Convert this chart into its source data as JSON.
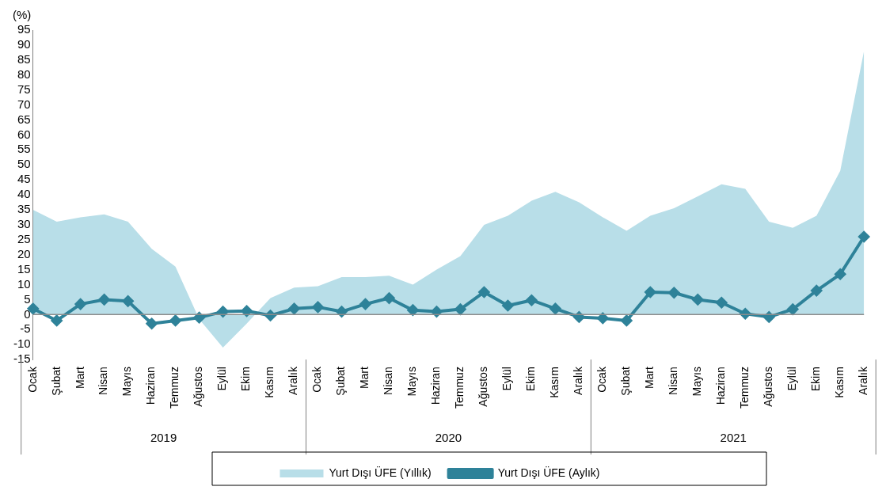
{
  "chart_data": {
    "type": "line",
    "ylabel": "(%)",
    "categories": [
      "Ocak",
      "Şubat",
      "Mart",
      "Nisan",
      "Mayıs",
      "Haziran",
      "Temmuz",
      "Ağustos",
      "Eylül",
      "Ekim",
      "Kasım",
      "Aralık",
      "Ocak",
      "Şubat",
      "Mart",
      "Nisan",
      "Mayıs",
      "Haziran",
      "Temmuz",
      "Ağustos",
      "Eylül",
      "Ekim",
      "Kasım",
      "Aralık",
      "Ocak",
      "Şubat",
      "Mart",
      "Nisan",
      "Mayıs",
      "Haziran",
      "Temmuz",
      "Ağustos",
      "Eylül",
      "Ekim",
      "Kasım",
      "Aralık"
    ],
    "annotations": [
      "2019",
      "2020",
      "2021"
    ],
    "series": [
      {
        "name": "Yurt Dışı ÜFE (Yıllık)",
        "type": "area",
        "color": "#b8dee8",
        "values": [
          35,
          31,
          32.5,
          33.5,
          31,
          22,
          16,
          -1.5,
          -11,
          -3,
          5.5,
          9,
          9.5,
          12.5,
          12.5,
          13,
          10,
          15,
          19.5,
          30,
          33,
          38,
          41,
          37.5,
          32.5,
          28,
          33,
          35.5,
          39.5,
          43.5,
          42,
          31,
          29,
          33,
          48,
          88
        ]
      },
      {
        "name": "Yurt Dışı ÜFE (Aylık)",
        "type": "line",
        "color": "#2e8299",
        "marker": "diamond",
        "values": [
          2,
          -2,
          3.5,
          5,
          4.5,
          -3,
          -2,
          -1,
          1,
          1.2,
          -0.3,
          2,
          2.5,
          1,
          3.5,
          5.5,
          1.5,
          1,
          1.8,
          7.5,
          3,
          4.8,
          2,
          -0.8,
          -1.2,
          -2,
          7.5,
          7.3,
          5,
          4,
          0.3,
          -0.8,
          1.8,
          8,
          13.5,
          26
        ]
      }
    ],
    "ylim": [
      -15,
      95
    ],
    "yticks": [
      -15,
      -10,
      -5,
      0,
      5,
      10,
      15,
      20,
      25,
      30,
      35,
      40,
      45,
      50,
      55,
      60,
      65,
      70,
      75,
      80,
      85,
      90,
      95
    ],
    "ref_lines": [
      {
        "axis": "y",
        "value": 0,
        "color": "#8c8c8c"
      }
    ],
    "grid": false,
    "legend": "bottom"
  }
}
